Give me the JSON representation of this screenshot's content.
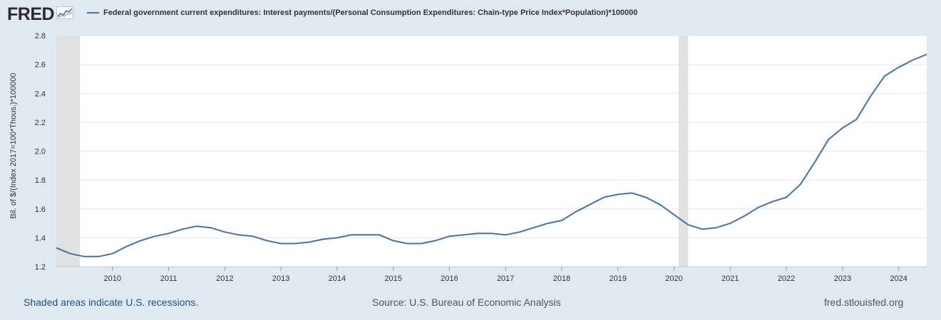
{
  "header": {
    "logo_text": "FRED",
    "logo_icon": "line-chart-icon",
    "legend_label": "Federal government current expenditures: Interest payments/(Personal Consumption Expenditures: Chain-type Price Index*Population)*100000"
  },
  "footer": {
    "recessions_note": "Shaded areas indicate U.S. recessions.",
    "source": "Source: U.S. Bureau of Economic Analysis",
    "site": "fred.stlouisfed.org"
  },
  "colors": {
    "series": "#4572a7",
    "recession": "#e1e1e1",
    "background": "#e1e9f0",
    "plot": "#ffffff",
    "grid": "#e6e6e6"
  },
  "chart_data": {
    "type": "line",
    "title": "",
    "xlabel": "",
    "ylabel": "Bil. of $/(Index 2017=100*Thous.)*100000",
    "xlim": [
      2009.0,
      2024.5
    ],
    "ylim": [
      1.2,
      2.8
    ],
    "yticks": [
      "1.2",
      "1.4",
      "1.6",
      "1.8",
      "2.0",
      "2.2",
      "2.4",
      "2.6",
      "2.8"
    ],
    "xticks": [
      "2010",
      "2011",
      "2012",
      "2013",
      "2014",
      "2015",
      "2016",
      "2017",
      "2018",
      "2019",
      "2020",
      "2021",
      "2022",
      "2023",
      "2024"
    ],
    "grid": true,
    "legend_position": "top",
    "recessions": [
      [
        2009.0,
        2009.42
      ],
      [
        2020.08,
        2020.25
      ]
    ],
    "series": [
      {
        "name": "Federal government current expenditures: Interest payments/(Personal Consumption Expenditures: Chain-type Price Index*Population)*100000",
        "x": [
          2009.0,
          2009.25,
          2009.5,
          2009.75,
          2010.0,
          2010.25,
          2010.5,
          2010.75,
          2011.0,
          2011.25,
          2011.5,
          2011.75,
          2012.0,
          2012.25,
          2012.5,
          2012.75,
          2013.0,
          2013.25,
          2013.5,
          2013.75,
          2014.0,
          2014.25,
          2014.5,
          2014.75,
          2015.0,
          2015.25,
          2015.5,
          2015.75,
          2016.0,
          2016.25,
          2016.5,
          2016.75,
          2017.0,
          2017.25,
          2017.5,
          2017.75,
          2018.0,
          2018.25,
          2018.5,
          2018.75,
          2019.0,
          2019.25,
          2019.5,
          2019.75,
          2020.0,
          2020.25,
          2020.5,
          2020.75,
          2021.0,
          2021.25,
          2021.5,
          2021.75,
          2022.0,
          2022.25,
          2022.5,
          2022.75,
          2023.0,
          2023.25,
          2023.5,
          2023.75,
          2024.0,
          2024.25,
          2024.5
        ],
        "values": [
          1.33,
          1.29,
          1.27,
          1.27,
          1.29,
          1.34,
          1.38,
          1.41,
          1.43,
          1.46,
          1.48,
          1.47,
          1.44,
          1.42,
          1.41,
          1.38,
          1.36,
          1.36,
          1.37,
          1.39,
          1.4,
          1.42,
          1.42,
          1.42,
          1.38,
          1.36,
          1.36,
          1.38,
          1.41,
          1.42,
          1.43,
          1.43,
          1.42,
          1.44,
          1.47,
          1.5,
          1.52,
          1.58,
          1.63,
          1.68,
          1.7,
          1.71,
          1.68,
          1.63,
          1.56,
          1.49,
          1.46,
          1.47,
          1.5,
          1.55,
          1.61,
          1.65,
          1.68,
          1.77,
          1.92,
          2.08,
          2.16,
          2.22,
          2.38,
          2.52,
          2.58,
          2.63,
          2.67
        ]
      }
    ]
  }
}
